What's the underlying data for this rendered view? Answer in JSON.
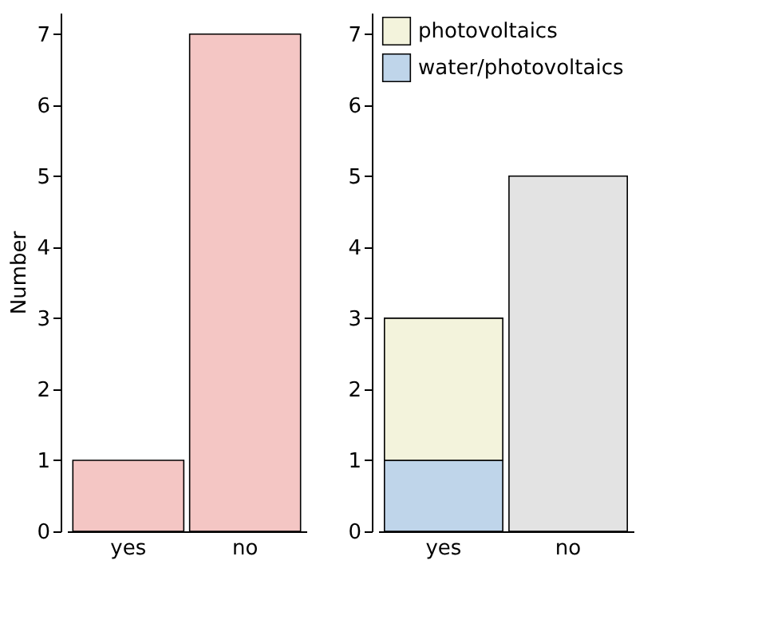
{
  "chart_data": [
    {
      "type": "bar",
      "categories": [
        "yes",
        "no"
      ],
      "ylabel": "Number",
      "ylim": [
        0,
        7.3
      ],
      "yticks": [
        0,
        1,
        2,
        3,
        4,
        5,
        6,
        7
      ],
      "series": [
        {
          "color": "#f4c6c4",
          "values": [
            1,
            7
          ]
        }
      ],
      "grid": false
    },
    {
      "type": "bar",
      "stacked": true,
      "categories": [
        "yes",
        "no"
      ],
      "ylim": [
        0,
        7.3
      ],
      "yticks": [
        0,
        1,
        2,
        3,
        4,
        5,
        6,
        7
      ],
      "series": [
        {
          "name": "water/photovoltaics",
          "color": "#bfd5ea",
          "values": [
            1,
            null
          ]
        },
        {
          "name": "photovoltaics",
          "color": "#f3f3dc",
          "values": [
            2,
            null
          ]
        },
        {
          "color": "#e3e3e3",
          "values": [
            null,
            5
          ]
        }
      ],
      "grid": false,
      "legend": "top left"
    }
  ]
}
